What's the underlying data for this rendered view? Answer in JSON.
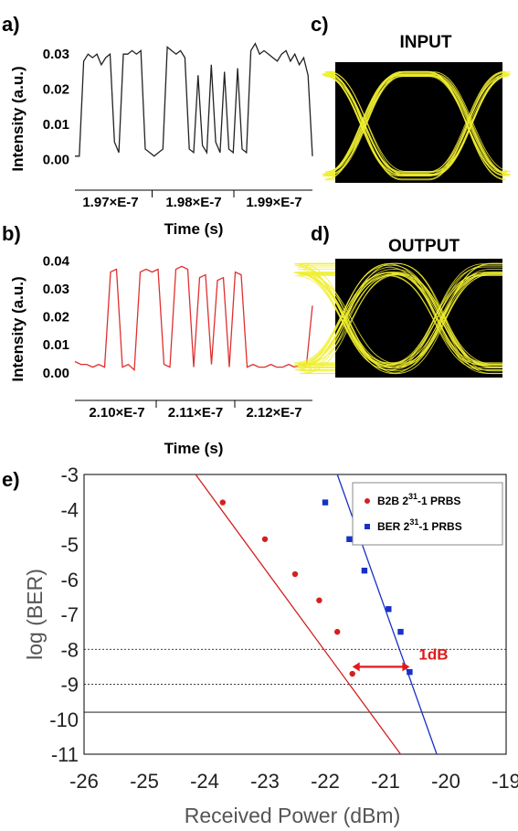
{
  "panel_labels": {
    "a": "a)",
    "b": "b)",
    "c": "c)",
    "d": "d)",
    "e": "e)"
  },
  "eye_titles": {
    "input": "INPUT",
    "output": "OUTPUT"
  },
  "colors": {
    "trace_a": "#222222",
    "trace_b": "#e03030",
    "eye_bg": "#000000",
    "eye_trace": "#f0ee30",
    "b2b": "#d42020",
    "ber": "#1830c8",
    "annotation": "#e01a1a"
  },
  "chart_data": [
    {
      "panel": "a",
      "type": "line",
      "xlabel": "Time (s)",
      "ylabel": "Intensity (a.u.)",
      "x_ticks": [
        "1.97×E-7",
        "1.98×E-7",
        "1.99×E-7"
      ],
      "y_ticks": [
        "0.00",
        "0.01",
        "0.02",
        "0.03"
      ],
      "ylim": [
        -0.004,
        0.035
      ],
      "series": [
        {
          "values": [
            0.001,
            0.001,
            0.028,
            0.03,
            0.029,
            0.03,
            0.027,
            0.029,
            0.03,
            0.005,
            0.002,
            0.03,
            0.03,
            0.031,
            0.03,
            0.031,
            0.003,
            0.002,
            0.001,
            0.002,
            0.003,
            0.032,
            0.031,
            0.03,
            0.031,
            0.029,
            0.003,
            0.002,
            0.024,
            0.004,
            0.002,
            0.027,
            0.005,
            0.002,
            0.025,
            0.003,
            0.002,
            0.026,
            0.003,
            0.002,
            0.031,
            0.033,
            0.03,
            0.031,
            0.03,
            0.029,
            0.028,
            0.03,
            0.031,
            0.028,
            0.03,
            0.027,
            0.029,
            0.024,
            0.001
          ]
        }
      ]
    },
    {
      "panel": "b",
      "type": "line",
      "xlabel": "Time (s)",
      "ylabel": "Intensity (a.u.)",
      "x_ticks": [
        "2.10×E-7",
        "2.11×E-7",
        "2.12×E-7"
      ],
      "y_ticks": [
        "0.00",
        "0.01",
        "0.02",
        "0.03",
        "0.04"
      ],
      "ylim": [
        -0.004,
        0.045
      ],
      "series": [
        {
          "values": [
            0.004,
            0.003,
            0.003,
            0.002,
            0.003,
            0.002,
            0.036,
            0.037,
            0.002,
            0.003,
            0.001,
            0.036,
            0.037,
            0.036,
            0.037,
            0.003,
            0.002,
            0.037,
            0.038,
            0.037,
            0.002,
            0.034,
            0.035,
            0.003,
            0.033,
            0.034,
            0.002,
            0.036,
            0.035,
            0.002,
            0.003,
            0.002,
            0.002,
            0.003,
            0.002,
            0.002,
            0.003,
            0.002,
            0.003,
            0.003,
            0.024
          ]
        }
      ]
    },
    {
      "panel": "c",
      "type": "eye_diagram",
      "title": "INPUT"
    },
    {
      "panel": "d",
      "type": "eye_diagram",
      "title": "OUTPUT"
    },
    {
      "panel": "e",
      "type": "scatter",
      "xlabel": "Received Power (dBm)",
      "ylabel": "log (BER)",
      "xlim": [
        -26,
        -19
      ],
      "ylim": [
        -11,
        -3
      ],
      "x_ticks": [
        "-26",
        "-25",
        "-24",
        "-23",
        "-22",
        "-21",
        "-20",
        "-19"
      ],
      "y_ticks": [
        "-3",
        "-4",
        "-5",
        "-6",
        "-7",
        "-8",
        "-9",
        "-10",
        "-11"
      ],
      "legend_position": "top-right",
      "series": [
        {
          "name_main": "B2B 2",
          "name_sup": "31",
          "name_tail": "-1 PRBS",
          "marker": "circle",
          "points": [
            [
              -23.7,
              -3.8
            ],
            [
              -23.0,
              -4.85
            ],
            [
              -22.5,
              -5.85
            ],
            [
              -22.1,
              -6.6
            ],
            [
              -21.8,
              -7.5
            ],
            [
              -21.55,
              -8.7
            ]
          ],
          "fit": [
            [
              -24.15,
              -3.0
            ],
            [
              -20.75,
              -11.0
            ]
          ]
        },
        {
          "name_main": "BER 2",
          "name_sup": "31",
          "name_tail": "-1 PRBS",
          "marker": "square",
          "points": [
            [
              -22.0,
              -3.8
            ],
            [
              -21.6,
              -4.85
            ],
            [
              -21.35,
              -5.75
            ],
            [
              -20.95,
              -6.85
            ],
            [
              -20.75,
              -7.5
            ],
            [
              -20.6,
              -8.65
            ]
          ],
          "fit": [
            [
              -21.8,
              -3.0
            ],
            [
              -20.15,
              -11.0
            ]
          ]
        }
      ],
      "reference_lines_y": [
        -8.0,
        -9.0
      ],
      "threshold_line_y": -9.8,
      "annotation": {
        "label": "1dB",
        "from_x": -21.55,
        "to_x": -20.6,
        "y": -8.5
      }
    }
  ]
}
